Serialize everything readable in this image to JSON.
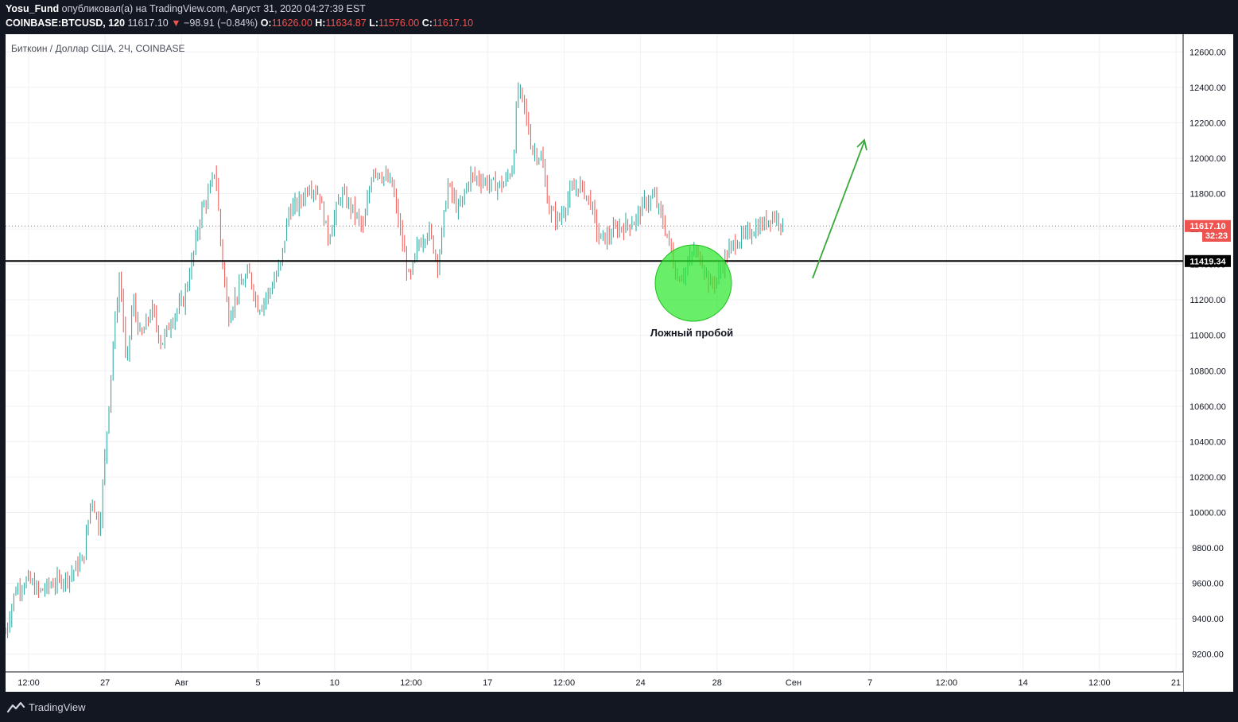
{
  "header": {
    "author": "Yosu_Fund",
    "published_text": "опубликовал(а) на TradingView.com, Август 31, 2020 04:27:39 EST",
    "symbol": "COINBASE:BTCUSD, 120",
    "last": "11617.10",
    "change_arrow": "▼",
    "change": "−98.91 (−0.84%)",
    "o_label": "O:",
    "o_value": "11626.00",
    "h_label": "H:",
    "h_value": "11634.87",
    "l_label": "L:",
    "l_value": "11576.00",
    "c_label": "C:",
    "c_value": "11617.10"
  },
  "footer": {
    "brand": "TradingView"
  },
  "colors": {
    "background": "#131722",
    "up": "#26a69a",
    "down": "#ef5350",
    "grid": "#eef0f3",
    "level_line": "#000000",
    "highlight": "#2ee82e",
    "arrow": "#3aa83a"
  },
  "chart_data": {
    "type": "candlestick",
    "title": "Биткоин / Доллар США, 2Ч, COINBASE",
    "ylim": [
      9100,
      12700
    ],
    "grid": true,
    "y_ticks": [
      "12600.00",
      "12400.00",
      "12200.00",
      "12000.00",
      "11800.00",
      "11600.00",
      "11400.00",
      "11200.00",
      "11000.00",
      "10800.00",
      "10600.00",
      "10400.00",
      "10200.00",
      "10000.00",
      "9800.00",
      "9600.00",
      "9400.00",
      "9200.00"
    ],
    "x_ticks": [
      "12:00",
      "27",
      "Авг",
      "5",
      "10",
      "12:00",
      "17",
      "12:00",
      "24",
      "28",
      "Сен",
      "7",
      "12:00",
      "14",
      "12:00",
      "21"
    ],
    "last_price_label": "11617.10",
    "countdown_label": "32:23",
    "level": {
      "value": 11419.34,
      "label": "11419.34"
    },
    "annotation": "Ложный пробой",
    "price_path": [
      [
        0,
        9320
      ],
      [
        12,
        9560
      ],
      [
        28,
        9620
      ],
      [
        42,
        9550
      ],
      [
        60,
        9600
      ],
      [
        80,
        9640
      ],
      [
        98,
        9740
      ],
      [
        108,
        10100
      ],
      [
        118,
        9900
      ],
      [
        128,
        10500
      ],
      [
        136,
        11000
      ],
      [
        144,
        11350
      ],
      [
        152,
        10800
      ],
      [
        160,
        11200
      ],
      [
        170,
        10980
      ],
      [
        184,
        11150
      ],
      [
        196,
        10950
      ],
      [
        210,
        11100
      ],
      [
        224,
        11200
      ],
      [
        236,
        11450
      ],
      [
        246,
        11700
      ],
      [
        256,
        11800
      ],
      [
        264,
        11950
      ],
      [
        270,
        11550
      ],
      [
        280,
        11100
      ],
      [
        292,
        11250
      ],
      [
        306,
        11350
      ],
      [
        318,
        11150
      ],
      [
        332,
        11250
      ],
      [
        346,
        11400
      ],
      [
        356,
        11700
      ],
      [
        370,
        11750
      ],
      [
        382,
        11850
      ],
      [
        394,
        11800
      ],
      [
        406,
        11550
      ],
      [
        422,
        11800
      ],
      [
        438,
        11700
      ],
      [
        450,
        11600
      ],
      [
        462,
        11950
      ],
      [
        474,
        11900
      ],
      [
        486,
        11850
      ],
      [
        498,
        11550
      ],
      [
        508,
        11300
      ],
      [
        518,
        11500
      ],
      [
        532,
        11600
      ],
      [
        544,
        11400
      ],
      [
        556,
        11850
      ],
      [
        570,
        11700
      ],
      [
        584,
        11900
      ],
      [
        598,
        11880
      ],
      [
        612,
        11850
      ],
      [
        626,
        11850
      ],
      [
        638,
        11950
      ],
      [
        644,
        12400
      ],
      [
        652,
        12300
      ],
      [
        662,
        12050
      ],
      [
        674,
        12000
      ],
      [
        684,
        11700
      ],
      [
        696,
        11650
      ],
      [
        710,
        11800
      ],
      [
        722,
        11850
      ],
      [
        736,
        11750
      ],
      [
        746,
        11550
      ],
      [
        756,
        11550
      ],
      [
        768,
        11600
      ],
      [
        780,
        11620
      ],
      [
        792,
        11650
      ],
      [
        804,
        11750
      ],
      [
        816,
        11780
      ],
      [
        826,
        11650
      ],
      [
        836,
        11500
      ],
      [
        844,
        11320
      ],
      [
        854,
        11360
      ],
      [
        866,
        11480
      ],
      [
        876,
        11420
      ],
      [
        886,
        11280
      ],
      [
        896,
        11330
      ],
      [
        906,
        11450
      ],
      [
        918,
        11530
      ],
      [
        930,
        11560
      ],
      [
        942,
        11600
      ],
      [
        954,
        11630
      ],
      [
        964,
        11680
      ],
      [
        974,
        11650
      ],
      [
        978,
        11617
      ]
    ]
  }
}
